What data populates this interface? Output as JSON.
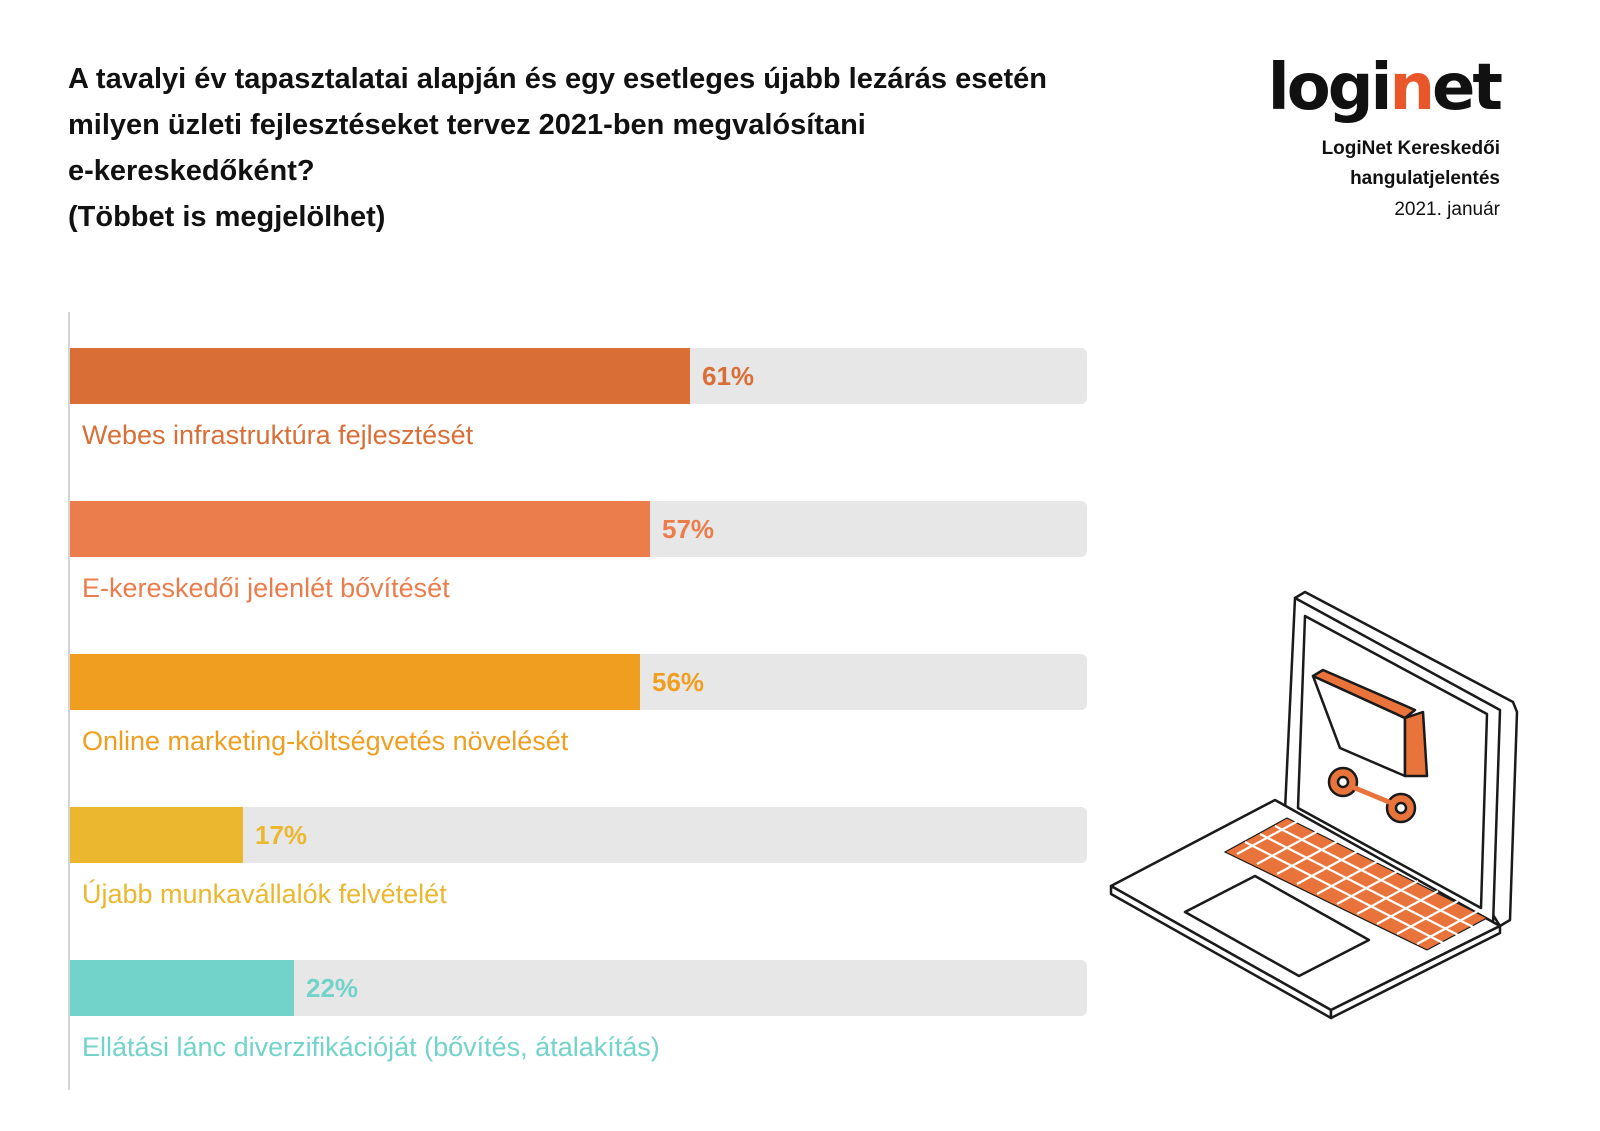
{
  "title_lines": [
    "A tavalyi év tapasztalatai alapján és egy esetleges újabb lezárás esetén",
    "milyen üzleti fejlesztéseket tervez 2021-ben megvalósítani",
    "e-kereskedőként?",
    "(Többet is megjelölhet)"
  ],
  "brand": {
    "logo_prefix": "logi",
    "logo_accent": "n",
    "logo_suffix": "et",
    "report_line1": "LogiNet Kereskedői",
    "report_line2": "hangulatjelentés",
    "date": "2021. január"
  },
  "illustration": {
    "icon": "laptop-shopping-cart-icon"
  },
  "colors": {
    "logo_accent": "#e8562a",
    "track": "#e7e7e7"
  },
  "chart_data": {
    "type": "bar",
    "orientation": "horizontal",
    "xlim": [
      0,
      100
    ],
    "categories": [
      "Webes infrastruktúra fejlesztését",
      "E-kereskedői jelenlét bővítését",
      "Online marketing-költségvetés növelését",
      "Újabb munkavállalók felvételét",
      "Ellátási lánc diverzifikációját (bővítés, átalakítás)"
    ],
    "values": [
      61,
      57,
      56,
      17,
      22
    ],
    "value_labels": [
      "61%",
      "57%",
      "56%",
      "17%",
      "22%"
    ],
    "colors": [
      "#d96e36",
      "#eb7c4b",
      "#f09e1f",
      "#ebb72e",
      "#72d3cb"
    ],
    "grid": false,
    "legend": "none"
  }
}
